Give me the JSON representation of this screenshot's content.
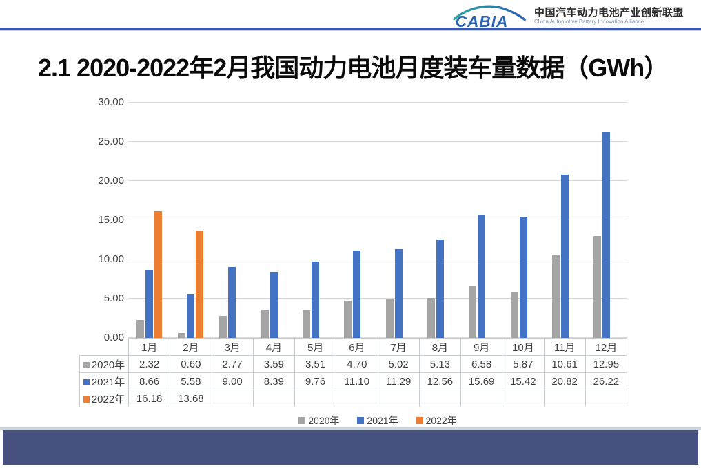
{
  "header": {
    "logo_text": "CABIA",
    "org_name_zh": "中国汽车动力电池产业创新联盟",
    "org_name_en": "China Automotive Battery Innovation Alliance"
  },
  "title": "2.1 2020-2022年2月我国动力电池月度装车量数据（GWh）",
  "chart_data": {
    "type": "bar",
    "title": "2020-2022年2月我国动力电池月度装车量数据（GWh）",
    "categories": [
      "1月",
      "2月",
      "3月",
      "4月",
      "5月",
      "6月",
      "7月",
      "8月",
      "9月",
      "10月",
      "11月",
      "12月"
    ],
    "series": [
      {
        "name": "2020年",
        "color": "#A5A5A5",
        "values": [
          2.32,
          0.6,
          2.77,
          3.59,
          3.51,
          4.7,
          5.02,
          5.13,
          6.58,
          5.87,
          10.61,
          12.95
        ]
      },
      {
        "name": "2021年",
        "color": "#4472C4",
        "values": [
          8.66,
          5.58,
          9.0,
          8.39,
          9.76,
          11.1,
          11.29,
          12.56,
          15.69,
          15.42,
          20.82,
          26.22
        ]
      },
      {
        "name": "2022年",
        "color": "#ED7D31",
        "values": [
          16.18,
          13.68,
          null,
          null,
          null,
          null,
          null,
          null,
          null,
          null,
          null,
          null
        ]
      }
    ],
    "ylim": [
      0,
      30
    ],
    "ytick_labels": [
      "0.00",
      "5.00",
      "10.00",
      "15.00",
      "20.00",
      "25.00",
      "30.00"
    ],
    "grid": true,
    "legend_position": "bottom",
    "data_table_shown": true,
    "value_decimals": 2
  },
  "colors": {
    "series_2020": "#A5A5A5",
    "series_2021": "#4472C4",
    "series_2022": "#ED7D31",
    "header_rule": "#3A57A8",
    "footer_bar": "#47517F",
    "gridline": "#D9D9D9",
    "table_border": "#C8CDD2",
    "text": "#404040"
  }
}
